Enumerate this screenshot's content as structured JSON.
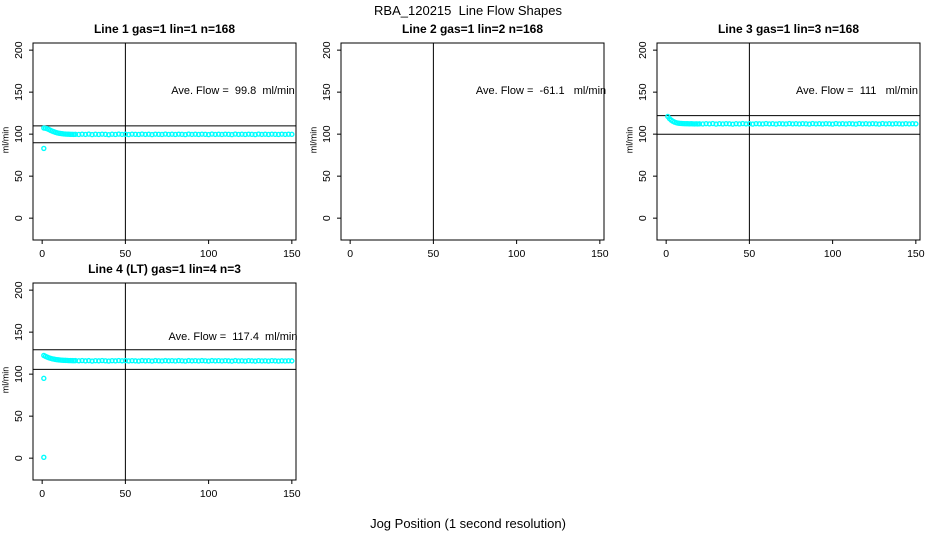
{
  "page": {
    "main_title": "RBA_120215  Line Flow Shapes",
    "x_axis_label": "Jog Position (1 second resolution)"
  },
  "colors": {
    "points": "#00ffff",
    "axis": "#000000",
    "background": "#ffffff"
  },
  "chart_data": {
    "type": "scatter",
    "title": "RBA_120215  Line Flow Shapes",
    "xlabel": "Jog Position (1 second resolution)",
    "xlim": [
      -5.5,
      152.5
    ],
    "ylim": [
      -26,
      208.5
    ],
    "xticks": [
      0,
      50,
      100,
      150
    ],
    "yticks": [
      0,
      50,
      100,
      150,
      200
    ],
    "grid": false,
    "marker": "open-circle",
    "subplots": [
      {
        "id": "line1",
        "title": "Line 1 gas=1 lin=1 n=168",
        "annotation": "Ave. Flow =  99.8  ml/min",
        "ave_flow": 99.8,
        "n": 168,
        "ylabel": "ml/min",
        "vline_x": 50,
        "hlines": [
          89.8,
          109.8
        ],
        "points": [
          [
            1,
            107.3
          ],
          [
            1,
            83
          ],
          [
            2,
            107.0
          ],
          [
            3,
            106.5
          ],
          [
            4,
            105.6
          ],
          [
            5,
            104.6
          ],
          [
            6,
            103.7
          ],
          [
            7,
            102.9
          ],
          [
            8,
            102.2
          ],
          [
            9,
            101.6
          ],
          [
            10,
            101.1
          ],
          [
            11,
            100.8
          ],
          [
            12,
            100.5
          ],
          [
            13,
            100.3
          ],
          [
            14,
            100.1
          ],
          [
            15,
            100.0
          ],
          [
            16,
            99.9
          ],
          [
            17,
            99.8
          ],
          [
            18,
            99.8
          ],
          [
            19,
            99.7
          ],
          [
            20,
            99.8
          ],
          [
            22,
            99.6
          ],
          [
            24,
            100.0
          ],
          [
            26,
            99.7
          ],
          [
            28,
            100.1
          ],
          [
            30,
            99.5
          ],
          [
            32,
            99.9
          ],
          [
            34,
            99.6
          ],
          [
            36,
            100.0
          ],
          [
            38,
            99.8
          ],
          [
            40,
            99.4
          ],
          [
            42,
            99.9
          ],
          [
            44,
            99.6
          ],
          [
            46,
            100.1
          ],
          [
            48,
            99.7
          ],
          [
            50,
            99.9
          ],
          [
            52,
            99.5
          ],
          [
            54,
            100.0
          ],
          [
            56,
            99.8
          ],
          [
            58,
            99.6
          ],
          [
            60,
            100.1
          ],
          [
            62,
            99.7
          ],
          [
            64,
            99.9
          ],
          [
            66,
            99.5
          ],
          [
            68,
            100.0
          ],
          [
            70,
            99.8
          ],
          [
            72,
            99.6
          ],
          [
            74,
            100.1
          ],
          [
            76,
            99.7
          ],
          [
            78,
            99.9
          ],
          [
            80,
            99.6
          ],
          [
            82,
            100.0
          ],
          [
            84,
            99.8
          ],
          [
            86,
            99.5
          ],
          [
            88,
            100.1
          ],
          [
            90,
            99.7
          ],
          [
            92,
            99.9
          ],
          [
            94,
            99.6
          ],
          [
            96,
            100.0
          ],
          [
            98,
            99.8
          ],
          [
            100,
            99.5
          ],
          [
            102,
            100.1
          ],
          [
            104,
            99.7
          ],
          [
            106,
            99.9
          ],
          [
            108,
            99.6
          ],
          [
            110,
            100.0
          ],
          [
            112,
            99.8
          ],
          [
            114,
            99.5
          ],
          [
            116,
            100.1
          ],
          [
            118,
            99.7
          ],
          [
            120,
            99.9
          ],
          [
            122,
            99.6
          ],
          [
            124,
            100.0
          ],
          [
            126,
            99.8
          ],
          [
            128,
            99.5
          ],
          [
            130,
            100.1
          ],
          [
            132,
            99.7
          ],
          [
            134,
            99.9
          ],
          [
            136,
            99.6
          ],
          [
            138,
            100.0
          ],
          [
            140,
            99.8
          ],
          [
            142,
            99.6
          ],
          [
            144,
            100.0
          ],
          [
            146,
            99.7
          ],
          [
            148,
            99.9
          ],
          [
            150,
            99.8
          ]
        ]
      },
      {
        "id": "line2",
        "title": "Line 2 gas=1 lin=2 n=168",
        "annotation": "Ave. Flow =  -61.1   ml/min",
        "ave_flow": -61.1,
        "n": 168,
        "ylabel": "ml/min",
        "vline_x": 50,
        "hlines": [],
        "points": []
      },
      {
        "id": "line3",
        "title": "Line 3 gas=1 lin=3 n=168",
        "annotation": "Ave. Flow =  111   ml/min",
        "ave_flow": 111,
        "n": 168,
        "ylabel": "ml/min",
        "vline_x": 50,
        "hlines": [
          99.9,
          122.1
        ],
        "points": [
          [
            1,
            121.0
          ],
          [
            2,
            118.5
          ],
          [
            3,
            116.8
          ],
          [
            4,
            115.4
          ],
          [
            5,
            114.4
          ],
          [
            6,
            113.7
          ],
          [
            7,
            113.2
          ],
          [
            8,
            112.9
          ],
          [
            9,
            112.7
          ],
          [
            10,
            112.6
          ],
          [
            11,
            112.5
          ],
          [
            12,
            112.4
          ],
          [
            13,
            112.4
          ],
          [
            14,
            112.3
          ],
          [
            15,
            112.4
          ],
          [
            16,
            112.3
          ],
          [
            17,
            112.2
          ],
          [
            18,
            112.3
          ],
          [
            19,
            112.2
          ],
          [
            20,
            112.3
          ],
          [
            22,
            112.1
          ],
          [
            24,
            112.5
          ],
          [
            26,
            112.2
          ],
          [
            28,
            112.6
          ],
          [
            30,
            112.0
          ],
          [
            32,
            112.4
          ],
          [
            34,
            112.1
          ],
          [
            36,
            112.5
          ],
          [
            38,
            112.3
          ],
          [
            40,
            111.9
          ],
          [
            42,
            112.4
          ],
          [
            44,
            112.1
          ],
          [
            46,
            112.6
          ],
          [
            48,
            112.2
          ],
          [
            50,
            112.4
          ],
          [
            52,
            112.0
          ],
          [
            54,
            112.5
          ],
          [
            56,
            112.3
          ],
          [
            58,
            112.1
          ],
          [
            60,
            112.6
          ],
          [
            62,
            112.2
          ],
          [
            64,
            112.4
          ],
          [
            66,
            112.0
          ],
          [
            68,
            112.5
          ],
          [
            70,
            112.3
          ],
          [
            72,
            112.1
          ],
          [
            74,
            112.6
          ],
          [
            76,
            112.2
          ],
          [
            78,
            112.4
          ],
          [
            80,
            112.1
          ],
          [
            82,
            112.5
          ],
          [
            84,
            112.3
          ],
          [
            86,
            112.0
          ],
          [
            88,
            112.6
          ],
          [
            90,
            112.2
          ],
          [
            92,
            112.4
          ],
          [
            94,
            112.1
          ],
          [
            96,
            112.5
          ],
          [
            98,
            112.3
          ],
          [
            100,
            112.0
          ],
          [
            102,
            112.6
          ],
          [
            104,
            112.2
          ],
          [
            106,
            112.4
          ],
          [
            108,
            112.1
          ],
          [
            110,
            112.5
          ],
          [
            112,
            112.3
          ],
          [
            114,
            112.0
          ],
          [
            116,
            112.6
          ],
          [
            118,
            112.2
          ],
          [
            120,
            112.4
          ],
          [
            122,
            112.1
          ],
          [
            124,
            112.5
          ],
          [
            126,
            112.3
          ],
          [
            128,
            112.0
          ],
          [
            130,
            112.6
          ],
          [
            132,
            112.2
          ],
          [
            134,
            112.4
          ],
          [
            136,
            112.1
          ],
          [
            138,
            112.5
          ],
          [
            140,
            112.3
          ],
          [
            142,
            112.1
          ],
          [
            144,
            112.5
          ],
          [
            146,
            112.2
          ],
          [
            148,
            112.4
          ],
          [
            150,
            112.3
          ]
        ]
      },
      {
        "id": "line4",
        "title": "Line 4 (LT) gas=1 lin=4 n=3",
        "annotation": "Ave. Flow =  117.4  ml/min",
        "ave_flow": 117.4,
        "n": 3,
        "ylabel": "ml/min",
        "vline_x": 50,
        "hlines": [
          105.7,
          129.1
        ],
        "points": [
          [
            1,
            122.3
          ],
          [
            1,
            95
          ],
          [
            1,
            1
          ],
          [
            2,
            121.2
          ],
          [
            3,
            120.3
          ],
          [
            4,
            119.5
          ],
          [
            5,
            118.9
          ],
          [
            6,
            118.3
          ],
          [
            7,
            117.9
          ],
          [
            8,
            117.5
          ],
          [
            9,
            117.2
          ],
          [
            10,
            117.0
          ],
          [
            11,
            116.8
          ],
          [
            12,
            116.6
          ],
          [
            13,
            116.5
          ],
          [
            14,
            116.4
          ],
          [
            15,
            116.3
          ],
          [
            16,
            116.2
          ],
          [
            17,
            116.2
          ],
          [
            18,
            116.1
          ],
          [
            19,
            116.0
          ],
          [
            20,
            116.1
          ],
          [
            22,
            115.9
          ],
          [
            24,
            116.2
          ],
          [
            26,
            115.8
          ],
          [
            28,
            116.1
          ],
          [
            30,
            115.6
          ],
          [
            32,
            116.0
          ],
          [
            34,
            115.8
          ],
          [
            36,
            116.2
          ],
          [
            38,
            115.9
          ],
          [
            40,
            115.6
          ],
          [
            42,
            116.0
          ],
          [
            44,
            115.8
          ],
          [
            46,
            116.2
          ],
          [
            48,
            115.9
          ],
          [
            50,
            116.1
          ],
          [
            52,
            115.7
          ],
          [
            54,
            116.0
          ],
          [
            56,
            115.8
          ],
          [
            58,
            115.6
          ],
          [
            60,
            116.1
          ],
          [
            62,
            115.8
          ],
          [
            64,
            116.0
          ],
          [
            66,
            115.6
          ],
          [
            68,
            116.1
          ],
          [
            70,
            115.9
          ],
          [
            72,
            115.7
          ],
          [
            74,
            116.1
          ],
          [
            76,
            115.8
          ],
          [
            78,
            116.0
          ],
          [
            80,
            115.7
          ],
          [
            82,
            116.1
          ],
          [
            84,
            115.9
          ],
          [
            86,
            115.6
          ],
          [
            88,
            116.1
          ],
          [
            90,
            115.8
          ],
          [
            92,
            116.0
          ],
          [
            94,
            115.7
          ],
          [
            96,
            116.1
          ],
          [
            98,
            115.9
          ],
          [
            100,
            115.6
          ],
          [
            102,
            116.1
          ],
          [
            104,
            115.8
          ],
          [
            106,
            116.0
          ],
          [
            108,
            115.7
          ],
          [
            110,
            116.0
          ],
          [
            112,
            115.8
          ],
          [
            114,
            115.5
          ],
          [
            116,
            116.1
          ],
          [
            118,
            115.7
          ],
          [
            120,
            115.9
          ],
          [
            122,
            115.6
          ],
          [
            124,
            116.0
          ],
          [
            126,
            115.8
          ],
          [
            128,
            115.5
          ],
          [
            130,
            116.0
          ],
          [
            132,
            115.7
          ],
          [
            134,
            115.9
          ],
          [
            136,
            115.6
          ],
          [
            138,
            116.0
          ],
          [
            140,
            115.8
          ],
          [
            142,
            115.6
          ],
          [
            144,
            115.9
          ],
          [
            146,
            115.7
          ],
          [
            148,
            115.9
          ],
          [
            150,
            115.8
          ]
        ]
      }
    ]
  }
}
